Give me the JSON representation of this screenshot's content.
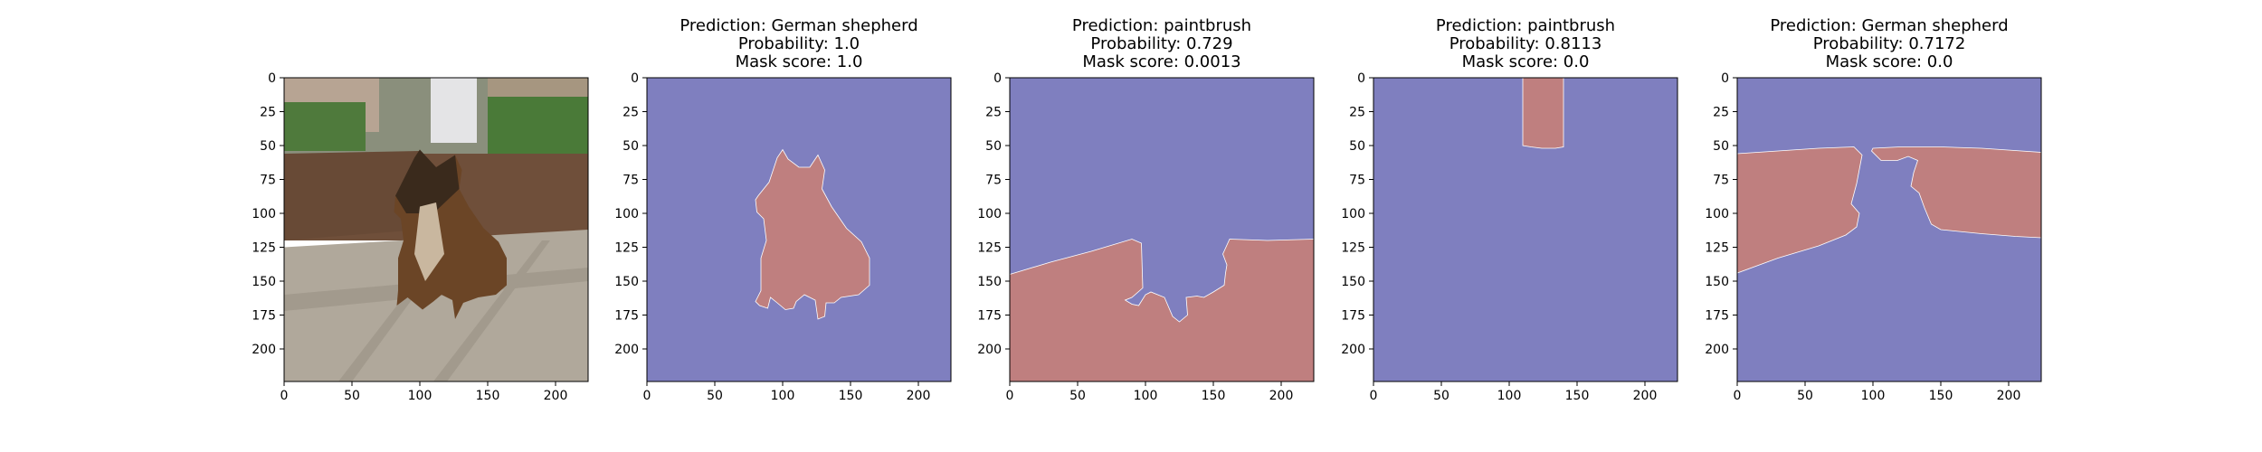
{
  "chart_data": [
    {
      "type": "image",
      "panel": "original",
      "content": "photo of a German shepherd dog sitting on a tiled terrace in front of a brick wall with bushes and buildings behind",
      "xlim": [
        0,
        224
      ],
      "ylim": [
        224,
        0
      ],
      "x_ticks": [
        0,
        50,
        100,
        150,
        200
      ],
      "y_ticks": [
        0,
        25,
        50,
        75,
        100,
        125,
        150,
        175,
        200
      ],
      "title_lines": []
    },
    {
      "type": "heatmap",
      "panel": "mask-1",
      "title_lines": [
        "Prediction: German shepherd",
        "Probability: 1.0",
        "Mask score: 1.0"
      ],
      "mask_region": "dog silhouette",
      "colors": {
        "background": "#7f7fbf",
        "mask": "#bf7f7f"
      },
      "xlim": [
        0,
        224
      ],
      "ylim": [
        224,
        0
      ],
      "x_ticks": [
        0,
        50,
        100,
        150,
        200
      ],
      "y_ticks": [
        0,
        25,
        50,
        75,
        100,
        125,
        150,
        175,
        200
      ],
      "mask_polygon": [
        [
          82,
          87
        ],
        [
          90,
          77
        ],
        [
          96,
          59
        ],
        [
          100,
          53
        ],
        [
          104,
          60
        ],
        [
          112,
          66
        ],
        [
          120,
          66
        ],
        [
          126,
          57
        ],
        [
          131,
          68
        ],
        [
          129,
          82
        ],
        [
          136,
          95
        ],
        [
          147,
          111
        ],
        [
          158,
          121
        ],
        [
          164,
          133
        ],
        [
          164,
          153
        ],
        [
          156,
          160
        ],
        [
          143,
          162
        ],
        [
          138,
          166
        ],
        [
          132,
          166
        ],
        [
          131,
          176
        ],
        [
          126,
          178
        ],
        [
          124,
          164
        ],
        [
          116,
          160
        ],
        [
          110,
          165
        ],
        [
          108,
          170
        ],
        [
          102,
          171
        ],
        [
          96,
          166
        ],
        [
          91,
          162
        ],
        [
          89,
          170
        ],
        [
          83,
          168
        ],
        [
          80,
          165
        ],
        [
          84,
          157
        ],
        [
          84,
          133
        ],
        [
          88,
          120
        ],
        [
          86,
          104
        ],
        [
          81,
          99
        ],
        [
          80,
          90
        ]
      ]
    },
    {
      "type": "heatmap",
      "panel": "mask-2",
      "title_lines": [
        "Prediction: paintbrush",
        "Probability: 0.729",
        "Mask score: 0.0013"
      ],
      "mask_region": "floor / ground",
      "colors": {
        "background": "#7f7fbf",
        "mask": "#bf7f7f"
      },
      "xlim": [
        0,
        224
      ],
      "ylim": [
        224,
        0
      ],
      "x_ticks": [
        0,
        50,
        100,
        150,
        200
      ],
      "y_ticks": [
        0,
        25,
        50,
        75,
        100,
        125,
        150,
        175,
        200
      ],
      "mask_polygon": [
        [
          0,
          145
        ],
        [
          30,
          136
        ],
        [
          60,
          128
        ],
        [
          90,
          119
        ],
        [
          97,
          122
        ],
        [
          98,
          155
        ],
        [
          90,
          162
        ],
        [
          85,
          164
        ],
        [
          90,
          167
        ],
        [
          95,
          168
        ],
        [
          100,
          160
        ],
        [
          104,
          158
        ],
        [
          114,
          162
        ],
        [
          120,
          176
        ],
        [
          125,
          180
        ],
        [
          131,
          175
        ],
        [
          130,
          162
        ],
        [
          138,
          161
        ],
        [
          143,
          162
        ],
        [
          150,
          158
        ],
        [
          158,
          153
        ],
        [
          159,
          144
        ],
        [
          160,
          138
        ],
        [
          157,
          130
        ],
        [
          162,
          119
        ],
        [
          190,
          120
        ],
        [
          224,
          119
        ],
        [
          224,
          224
        ],
        [
          0,
          224
        ]
      ]
    },
    {
      "type": "heatmap",
      "panel": "mask-3",
      "title_lines": [
        "Prediction: paintbrush",
        "Probability: 0.8113",
        "Mask score: 0.0"
      ],
      "mask_region": "pillar at top",
      "colors": {
        "background": "#7f7fbf",
        "mask": "#bf7f7f"
      },
      "xlim": [
        0,
        224
      ],
      "ylim": [
        224,
        0
      ],
      "x_ticks": [
        0,
        50,
        100,
        150,
        200
      ],
      "y_ticks": [
        0,
        25,
        50,
        75,
        100,
        125,
        150,
        175,
        200
      ],
      "mask_polygon": [
        [
          110,
          0
        ],
        [
          140,
          0
        ],
        [
          140,
          51
        ],
        [
          134,
          52
        ],
        [
          124,
          52
        ],
        [
          116,
          51
        ],
        [
          110,
          50
        ],
        [
          110,
          25
        ]
      ]
    },
    {
      "type": "heatmap",
      "panel": "mask-4",
      "title_lines": [
        "Prediction: German shepherd",
        "Probability: 0.7172",
        "Mask score: 0.0"
      ],
      "mask_region": "brick wall",
      "colors": {
        "background": "#7f7fbf",
        "mask": "#bf7f7f"
      },
      "xlim": [
        0,
        224
      ],
      "ylim": [
        224,
        0
      ],
      "x_ticks": [
        0,
        50,
        100,
        150,
        200
      ],
      "y_ticks": [
        0,
        25,
        50,
        75,
        100,
        125,
        150,
        175,
        200
      ],
      "mask_polygon": [
        [
          0,
          56
        ],
        [
          30,
          54
        ],
        [
          60,
          52
        ],
        [
          86,
          51
        ],
        [
          92,
          57
        ],
        [
          88,
          78
        ],
        [
          84,
          93
        ],
        [
          90,
          100
        ],
        [
          88,
          110
        ],
        [
          80,
          116
        ],
        [
          60,
          124
        ],
        [
          30,
          133
        ],
        [
          0,
          144
        ]
      ],
      "mask_polygon_2": [
        [
          100,
          52
        ],
        [
          120,
          51
        ],
        [
          150,
          51
        ],
        [
          180,
          52
        ],
        [
          224,
          55
        ],
        [
          224,
          118
        ],
        [
          205,
          117
        ],
        [
          180,
          115
        ],
        [
          160,
          113
        ],
        [
          150,
          112
        ],
        [
          143,
          108
        ],
        [
          138,
          96
        ],
        [
          134,
          85
        ],
        [
          128,
          80
        ],
        [
          130,
          70
        ],
        [
          133,
          61
        ],
        [
          126,
          58
        ],
        [
          118,
          61
        ],
        [
          106,
          61
        ],
        [
          99,
          54
        ]
      ]
    }
  ]
}
